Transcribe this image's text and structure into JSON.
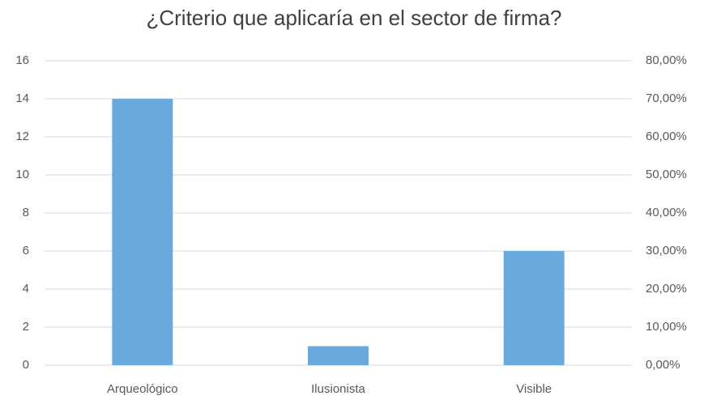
{
  "chart_data": {
    "type": "bar",
    "title": "¿Criterio que aplicaría en el sector de firma?",
    "categories": [
      "Arqueológico",
      "Ilusionista",
      "Visible"
    ],
    "values": [
      14,
      1,
      6
    ],
    "color": "#6aa9dc",
    "ylim": [
      0,
      16
    ],
    "yticks": [
      0,
      2,
      4,
      6,
      8,
      10,
      12,
      14,
      16
    ],
    "y2lim": [
      0,
      80
    ],
    "y2ticks": [
      {
        "value": 0,
        "label": "0,00%"
      },
      {
        "value": 10,
        "label": "10,00%"
      },
      {
        "value": 20,
        "label": "20,00%"
      },
      {
        "value": 30,
        "label": "30,00%"
      },
      {
        "value": 40,
        "label": "40,00%"
      },
      {
        "value": 50,
        "label": "50,00%"
      },
      {
        "value": 60,
        "label": "60,00%"
      },
      {
        "value": 70,
        "label": "70,00%"
      },
      {
        "value": 80,
        "label": "80,00%"
      }
    ],
    "grid": true
  }
}
